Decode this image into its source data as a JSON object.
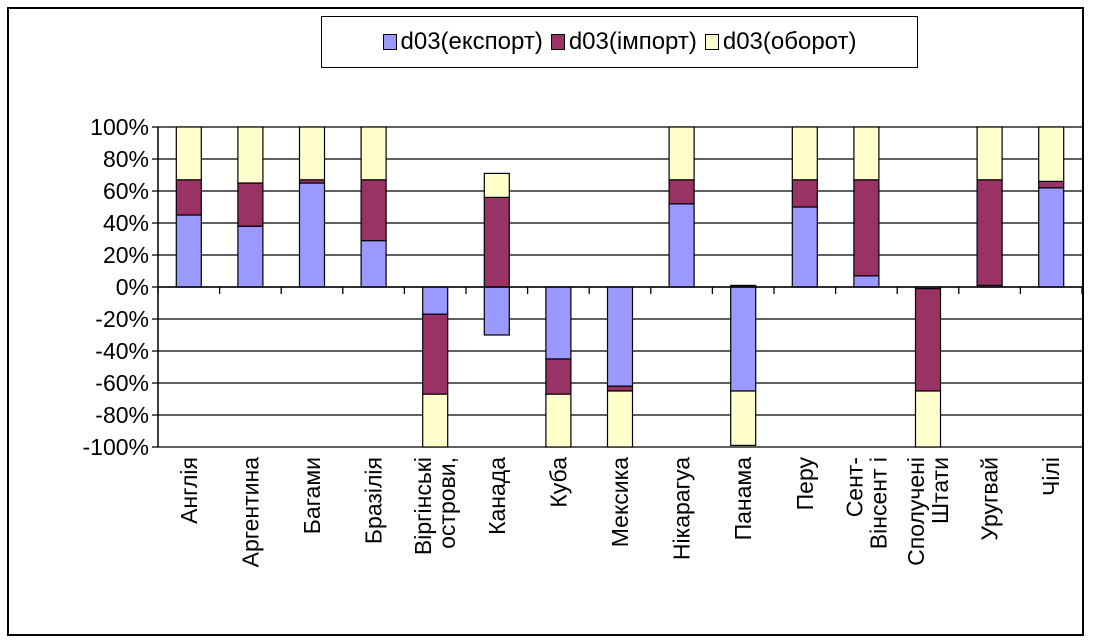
{
  "chart_data": {
    "type": "bar",
    "stacked": true,
    "categories": [
      [
        "Англія"
      ],
      [
        "Аргентина"
      ],
      [
        "Багами"
      ],
      [
        "Бразілія"
      ],
      [
        "Віргінські",
        "острови,"
      ],
      [
        "Канада"
      ],
      [
        "Куба"
      ],
      [
        "Мексика"
      ],
      [
        "Нікарагуа"
      ],
      [
        "Панама"
      ],
      [
        "Перу"
      ],
      [
        "Сент-",
        "Вінсент і"
      ],
      [
        "Сполучені",
        "Штати"
      ],
      [
        "Уругвай"
      ],
      [
        "Чілі"
      ]
    ],
    "series": [
      {
        "name": "d03(експорт)",
        "color": "#9999ff",
        "values": [
          45,
          38,
          65,
          29,
          -17,
          -30,
          -45,
          -62,
          52,
          -65,
          50,
          7,
          -1,
          1,
          62
        ]
      },
      {
        "name": "d03(імпорт)",
        "color": "#993366",
        "values": [
          22,
          27,
          2,
          38,
          -50,
          56,
          -22,
          -3,
          15,
          1,
          17,
          60,
          -64,
          66,
          4
        ]
      },
      {
        "name": "d03(оборот)",
        "color": "#ffffcc",
        "values": [
          33,
          35,
          33,
          33,
          -33,
          15,
          -33,
          -35,
          33,
          -34,
          33,
          33,
          -35,
          33,
          34
        ]
      }
    ],
    "ylim": [
      -100,
      100
    ],
    "yticks": [
      "-100%",
      "-80%",
      "-60%",
      "-40%",
      "-20%",
      "0%",
      "20%",
      "40%",
      "60%",
      "80%",
      "100%"
    ],
    "grid": true,
    "legend": "top"
  }
}
